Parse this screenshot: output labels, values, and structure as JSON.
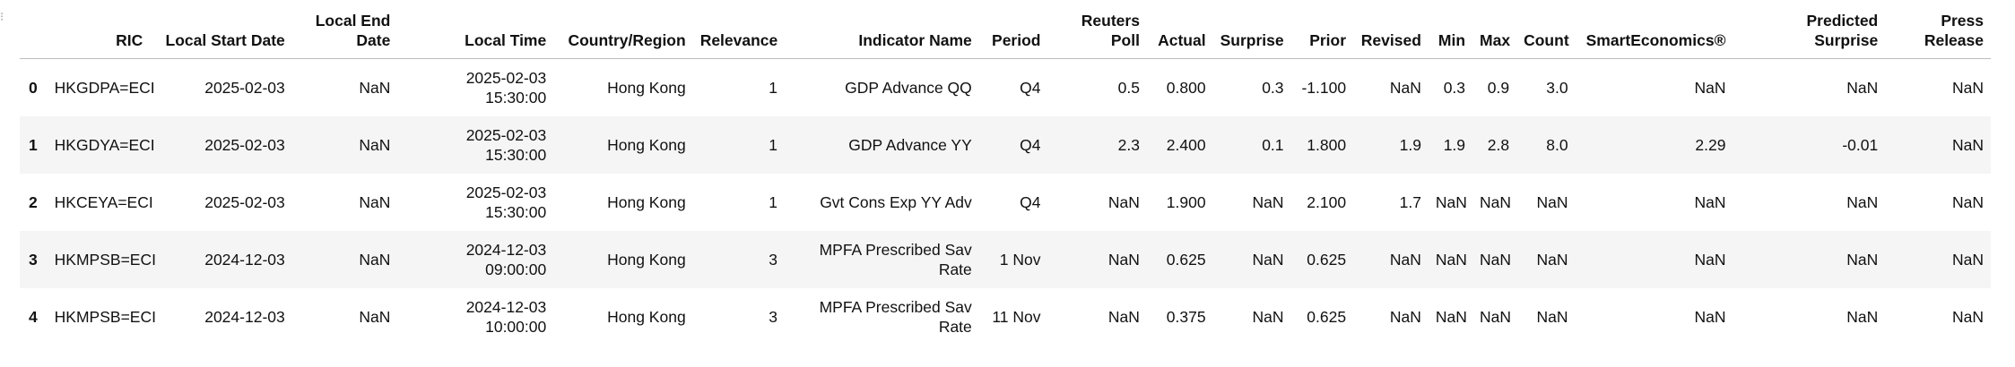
{
  "gutter_marks": [
    "⁝"
  ],
  "table": {
    "columns": [
      "",
      "RIC",
      "Local Start Date",
      "Local End Date",
      "Local Time",
      "Country/Region",
      "Relevance",
      "Indicator Name",
      "Period",
      "Reuters Poll",
      "Actual",
      "Surprise",
      "Prior",
      "Revised",
      "Min",
      "Max",
      "Count",
      "SmartEconomics®",
      "Predicted Surprise",
      "Press Release"
    ],
    "rows": [
      [
        "0",
        "HKGDPA=ECI",
        "2025-02-03",
        "NaN",
        "2025-02-03 15:30:00",
        "Hong Kong",
        "1",
        "GDP Advance QQ",
        "Q4",
        "0.5",
        "0.800",
        "0.3",
        "-1.100",
        "NaN",
        "0.3",
        "0.9",
        "3.0",
        "NaN",
        "NaN",
        "NaN"
      ],
      [
        "1",
        "HKGDYA=ECI",
        "2025-02-03",
        "NaN",
        "2025-02-03 15:30:00",
        "Hong Kong",
        "1",
        "GDP Advance YY",
        "Q4",
        "2.3",
        "2.400",
        "0.1",
        "1.800",
        "1.9",
        "1.9",
        "2.8",
        "8.0",
        "2.29",
        "-0.01",
        "NaN"
      ],
      [
        "2",
        "HKCEYA=ECI",
        "2025-02-03",
        "NaN",
        "2025-02-03 15:30:00",
        "Hong Kong",
        "1",
        "Gvt Cons Exp YY Adv",
        "Q4",
        "NaN",
        "1.900",
        "NaN",
        "2.100",
        "1.7",
        "NaN",
        "NaN",
        "NaN",
        "NaN",
        "NaN",
        "NaN"
      ],
      [
        "3",
        "HKMPSB=ECI",
        "2024-12-03",
        "NaN",
        "2024-12-03 09:00:00",
        "Hong Kong",
        "3",
        "MPFA Prescribed Sav Rate",
        "1 Nov",
        "NaN",
        "0.625",
        "NaN",
        "0.625",
        "NaN",
        "NaN",
        "NaN",
        "NaN",
        "NaN",
        "NaN",
        "NaN"
      ],
      [
        "4",
        "HKMPSB=ECI",
        "2024-12-03",
        "NaN",
        "2024-12-03 10:00:00",
        "Hong Kong",
        "3",
        "MPFA Prescribed Sav Rate",
        "11 Nov",
        "NaN",
        "0.375",
        "NaN",
        "0.625",
        "NaN",
        "NaN",
        "NaN",
        "NaN",
        "NaN",
        "NaN",
        "NaN"
      ]
    ]
  }
}
